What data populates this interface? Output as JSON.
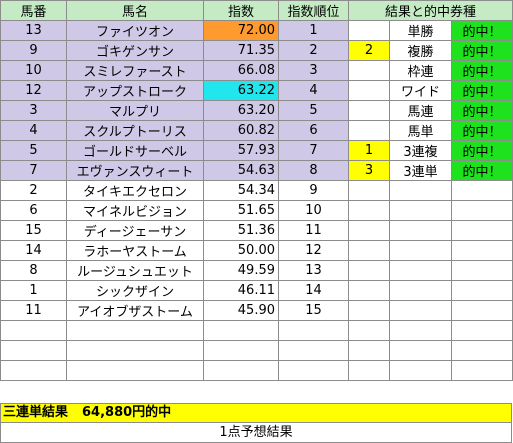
{
  "headers": {
    "number": "馬番",
    "name": "馬名",
    "index": "指数",
    "rank": "指数順位",
    "result": "結果と的中券種"
  },
  "rows": [
    {
      "num": "13",
      "name": "ファイツオン",
      "index": "72.00",
      "rank": "1",
      "mark": "",
      "ticket": "単勝",
      "hit": "的中！"
    },
    {
      "num": "9",
      "name": "ゴキゲンサン",
      "index": "71.35",
      "rank": "2",
      "mark": "2",
      "ticket": "複勝",
      "hit": "的中！"
    },
    {
      "num": "10",
      "name": "スミレファースト",
      "index": "66.08",
      "rank": "3",
      "mark": "",
      "ticket": "枠連",
      "hit": "的中！"
    },
    {
      "num": "12",
      "name": "アップストローク",
      "index": "63.22",
      "rank": "4",
      "mark": "",
      "ticket": "ワイド",
      "hit": "的中！"
    },
    {
      "num": "3",
      "name": "マルプリ",
      "index": "63.20",
      "rank": "5",
      "mark": "",
      "ticket": "馬連",
      "hit": "的中！"
    },
    {
      "num": "4",
      "name": "スクルプトーリス",
      "index": "60.82",
      "rank": "6",
      "mark": "",
      "ticket": "馬単",
      "hit": "的中！"
    },
    {
      "num": "5",
      "name": "ゴールドサーベル",
      "index": "57.93",
      "rank": "7",
      "mark": "1",
      "ticket": "3連複",
      "hit": "的中！"
    },
    {
      "num": "7",
      "name": "エヴァンスウィート",
      "index": "54.63",
      "rank": "8",
      "mark": "3",
      "ticket": "3連単",
      "hit": "的中！"
    },
    {
      "num": "2",
      "name": "タイキエクセロン",
      "index": "54.34",
      "rank": "9",
      "mark": "",
      "ticket": "",
      "hit": ""
    },
    {
      "num": "6",
      "name": "マイネルビジョン",
      "index": "51.65",
      "rank": "10",
      "mark": "",
      "ticket": "",
      "hit": ""
    },
    {
      "num": "15",
      "name": "ディージェーサン",
      "index": "51.36",
      "rank": "11",
      "mark": "",
      "ticket": "",
      "hit": ""
    },
    {
      "num": "14",
      "name": "ラホーヤストーム",
      "index": "50.00",
      "rank": "12",
      "mark": "",
      "ticket": "",
      "hit": ""
    },
    {
      "num": "8",
      "name": "ルージュシュエット",
      "index": "49.59",
      "rank": "13",
      "mark": "",
      "ticket": "",
      "hit": ""
    },
    {
      "num": "1",
      "name": "シックザイン",
      "index": "46.11",
      "rank": "14",
      "mark": "",
      "ticket": "",
      "hit": ""
    },
    {
      "num": "11",
      "name": "アイオブザストーム",
      "index": "45.90",
      "rank": "15",
      "mark": "",
      "ticket": "",
      "hit": ""
    }
  ],
  "footer": {
    "label": "三連単結果",
    "payout": "64,880円的中",
    "note": "1点予想結果"
  },
  "colors": {
    "header_bg": "#c4ebc4",
    "top8_bg": "#cfc8e6",
    "rank1_index": "#ff9a2e",
    "rank4_index": "#22e6ee",
    "mark_yellow": "#ffff00",
    "hit_green": "#1de21d"
  }
}
